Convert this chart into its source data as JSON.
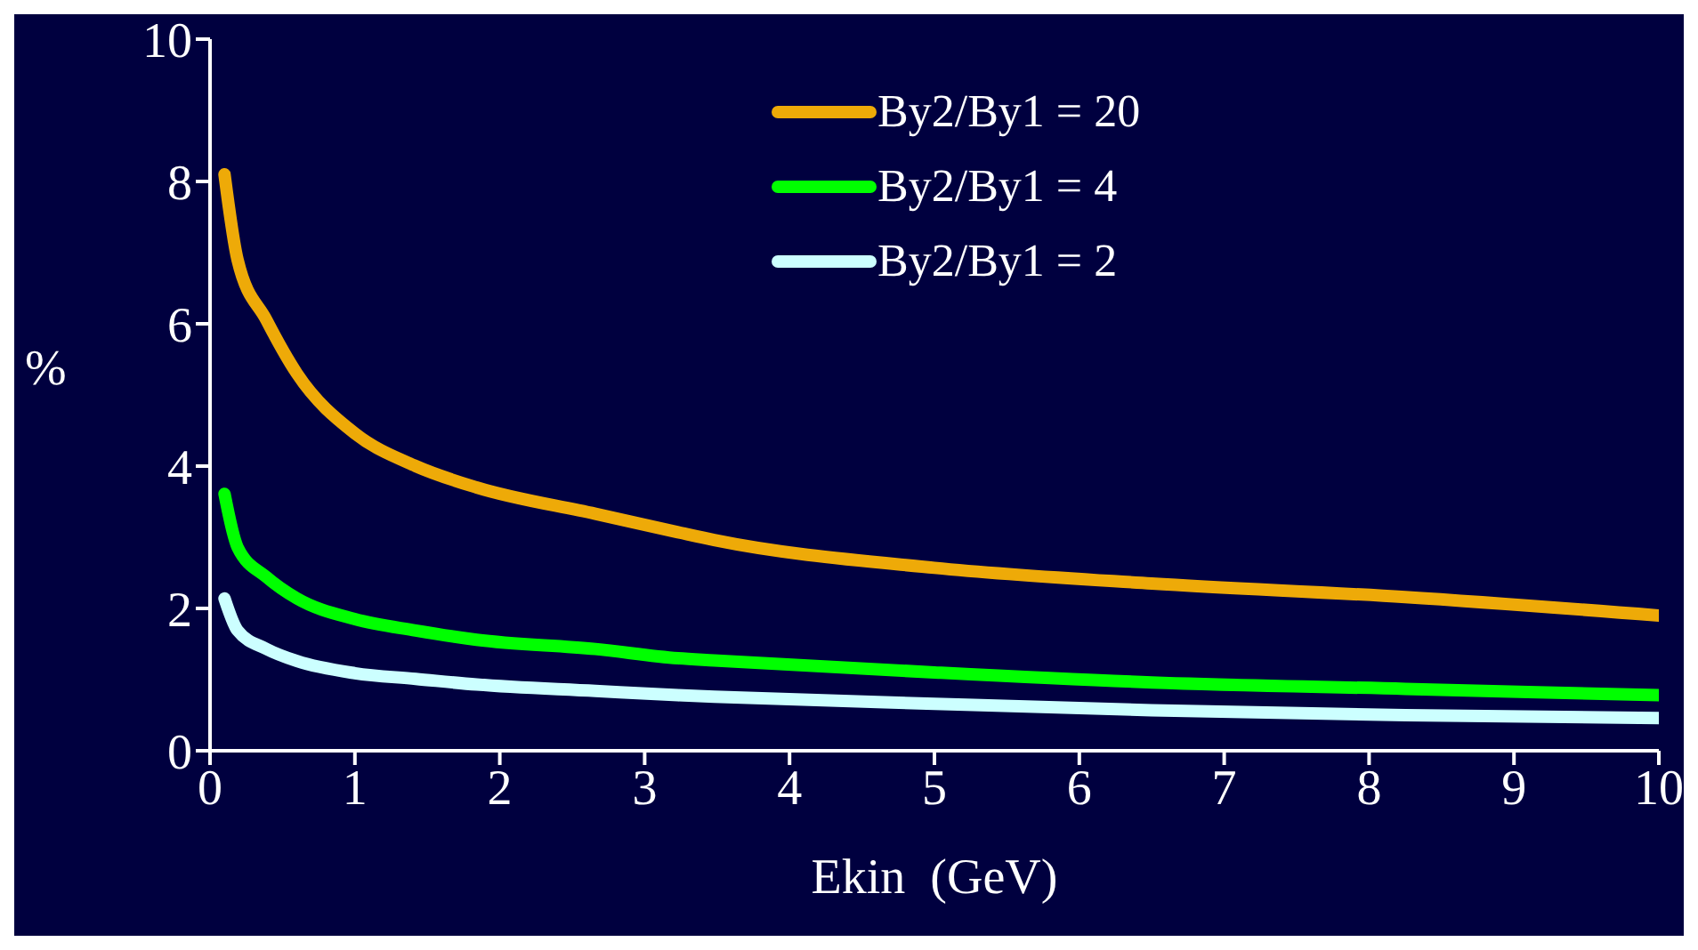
{
  "chart_data": {
    "type": "line",
    "xlabel": "Ekin  (GeV)",
    "ylabel": "%",
    "xlim": [
      0,
      10
    ],
    "xticks": [
      0,
      1,
      2,
      3,
      4,
      5,
      6,
      7,
      8,
      9,
      10
    ],
    "ylim": [
      0,
      10
    ],
    "yticks": [
      0,
      2,
      4,
      6,
      8,
      10
    ],
    "grid": false,
    "legend": "top right",
    "marker": "none",
    "line_style": "solid",
    "series": [
      {
        "name": "By2/By1 = 20",
        "color": "#eeaa08",
        "x": [
          0.1,
          0.19,
          0.39,
          0.6,
          1.0,
          1.42,
          1.84,
          2.66,
          3.23,
          3.48,
          5,
          6.5,
          8.25,
          10
        ],
        "values": [
          8.1,
          6.9,
          6.05,
          5.3,
          4.46,
          4.0,
          3.7,
          3.33,
          3.07,
          2.96,
          2.57,
          2.35,
          2.16,
          1.9
        ]
      },
      {
        "name": "By2/By1 = 4",
        "color": "#00ff00",
        "x": [
          0.1,
          0.19,
          0.39,
          0.6,
          1.0,
          1.42,
          1.84,
          2.66,
          3.23,
          3.48,
          5,
          6.5,
          8.25,
          10
        ],
        "values": [
          3.61,
          2.86,
          2.44,
          2.14,
          1.85,
          1.69,
          1.56,
          1.43,
          1.3,
          1.27,
          1.1,
          0.96,
          0.87,
          0.78
        ]
      },
      {
        "name": "By2/By1 = 2",
        "color": "#ccffff",
        "x": [
          0.1,
          0.19,
          0.39,
          0.6,
          1.0,
          1.42,
          1.84,
          2.66,
          3.23,
          3.48,
          5,
          6.5,
          8.25,
          10
        ],
        "values": [
          2.14,
          1.69,
          1.43,
          1.26,
          1.09,
          1.01,
          0.93,
          0.84,
          0.78,
          0.76,
          0.66,
          0.57,
          0.5,
          0.46
        ]
      }
    ]
  }
}
